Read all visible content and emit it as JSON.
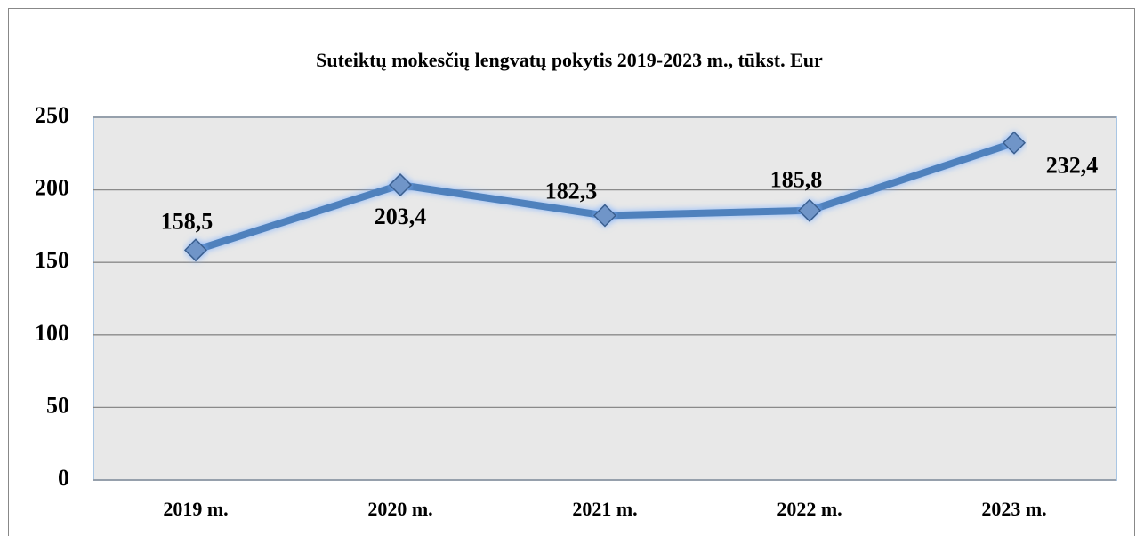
{
  "chart_data": {
    "type": "line",
    "title": "Suteiktų mokesčių lengvatų pokytis 2019-2023 m., tūkst. Eur",
    "categories": [
      "2019 m.",
      "2020 m.",
      "2021 m.",
      "2022 m.",
      "2023 m."
    ],
    "values": [
      158.5,
      203.4,
      182.3,
      185.8,
      232.4
    ],
    "value_labels": [
      "158,5",
      "203,4",
      "182,3",
      "185,8",
      "232,4"
    ],
    "color": "#4f81bd",
    "ylim": [
      0,
      250
    ],
    "yticks": [
      0,
      50,
      100,
      150,
      200,
      250
    ],
    "grid": true
  }
}
